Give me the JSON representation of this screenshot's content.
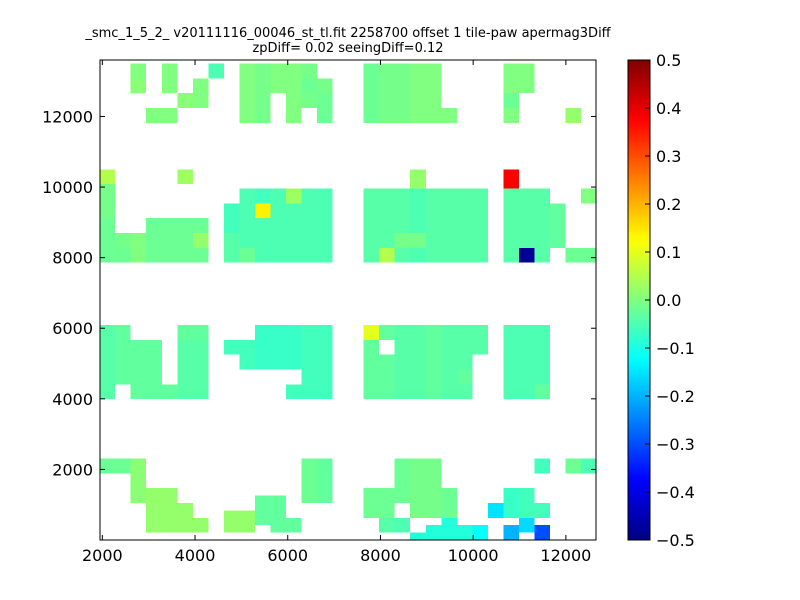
{
  "chart_data": {
    "type": "heatmap",
    "title_line1": "_smc_1_5_2_ v20111116_00046_st_tl.fit 2258700 offset 1 tile-paw apermag3Diff",
    "title_line2": "zpDiff= 0.02 seeingDiff=0.12",
    "xlabel": "",
    "ylabel": "",
    "xlim": [
      1950,
      12650
    ],
    "ylim": [
      0,
      13600
    ],
    "xticks": [
      2000,
      4000,
      6000,
      8000,
      10000,
      12000
    ],
    "yticks": [
      2000,
      4000,
      6000,
      8000,
      10000,
      12000
    ],
    "colorbar": {
      "colormap": "jet",
      "vmin": -0.5,
      "vmax": 0.5,
      "ticks": [
        -0.5,
        -0.4,
        -0.3,
        -0.2,
        -0.1,
        0.0,
        0.1,
        0.2,
        0.3,
        0.4,
        0.5
      ]
    },
    "cell_size": [
      335,
      420
    ],
    "cell_columns": [
      {
        "x": 2110,
        "blocks": [
          [
            7860,
            9120,
            -0.02
          ],
          [
            3990,
            6090,
            -0.04
          ],
          [
            1890,
            2310,
            -0.02
          ]
        ],
        "values": [
          [
            10080,
            10500,
            0.05
          ],
          [
            9120,
            10080,
            -0.01
          ]
        ]
      },
      {
        "x": 2445,
        "blocks": [
          [
            7860,
            8700,
            -0.02
          ],
          [
            4410,
            6090,
            -0.03
          ],
          [
            1890,
            2310,
            -0.02
          ]
        ],
        "values": [
          [
            8280,
            8700,
            -0.01
          ]
        ]
      },
      {
        "x": 2780,
        "blocks": [
          [
            12660,
            13500,
            0.01
          ],
          [
            7860,
            8700,
            0.0
          ],
          [
            3990,
            5670,
            -0.03
          ],
          [
            1050,
            2310,
            0.01
          ]
        ],
        "values": [
          [
            13080,
            13500,
            0.0
          ]
        ]
      },
      {
        "x": 3115,
        "blocks": [
          [
            11820,
            12240,
            0.0
          ],
          [
            7860,
            9120,
            -0.02
          ],
          [
            3990,
            5670,
            -0.03
          ],
          [
            210,
            1470,
            0.02
          ]
        ],
        "values": []
      },
      {
        "x": 3450,
        "blocks": [
          [
            11820,
            12240,
            0.0
          ],
          [
            12660,
            13500,
            0.0
          ],
          [
            7860,
            9120,
            -0.02
          ],
          [
            3990,
            4410,
            -0.03
          ],
          [
            210,
            1470,
            0.02
          ]
        ],
        "values": [
          [
            13080,
            13500,
            0.0
          ]
        ]
      },
      {
        "x": 3785,
        "blocks": [
          [
            12240,
            12660,
            0.01
          ],
          [
            7860,
            9120,
            -0.02
          ],
          [
            3990,
            6090,
            -0.04
          ],
          [
            210,
            1050,
            0.02
          ]
        ],
        "values": [
          [
            10080,
            10500,
            0.03
          ],
          [
            5670,
            6090,
            -0.03
          ]
        ]
      },
      {
        "x": 4120,
        "blocks": [
          [
            12240,
            13080,
            0.0
          ],
          [
            7860,
            9120,
            -0.02
          ],
          [
            3990,
            6090,
            -0.04
          ],
          [
            210,
            630,
            0.02
          ]
        ],
        "values": [
          [
            8280,
            8700,
            0.02
          ],
          [
            5670,
            6090,
            -0.03
          ]
        ]
      },
      {
        "x": 4455,
        "blocks": [
          [
            13080,
            13500,
            -0.05
          ]
        ],
        "values": []
      },
      {
        "x": 4790,
        "blocks": [
          [
            8700,
            9540,
            -0.06
          ],
          [
            7860,
            8700,
            -0.04
          ],
          [
            5250,
            5670,
            -0.06
          ],
          [
            210,
            840,
            0.02
          ]
        ],
        "values": [
          [
            8280,
            8700,
            -0.04
          ]
        ]
      },
      {
        "x": 5125,
        "blocks": [
          [
            11820,
            13500,
            0.0
          ],
          [
            7860,
            9960,
            -0.05
          ],
          [
            4830,
            5670,
            -0.06
          ],
          [
            210,
            840,
            0.02
          ]
        ],
        "values": [
          [
            7860,
            8280,
            -0.02
          ]
        ]
      },
      {
        "x": 5460,
        "blocks": [
          [
            11820,
            13500,
            -0.01
          ],
          [
            7860,
            9960,
            -0.05
          ],
          [
            4830,
            6090,
            -0.07
          ],
          [
            420,
            1260,
            -0.03
          ]
        ],
        "values": [
          [
            9120,
            9540,
            0.14
          ],
          [
            9540,
            9960,
            -0.06
          ]
        ]
      },
      {
        "x": 5795,
        "blocks": [
          [
            12660,
            13500,
            0.0
          ],
          [
            7860,
            9540,
            -0.05
          ],
          [
            4830,
            6090,
            -0.07
          ],
          [
            210,
            1260,
            -0.03
          ]
        ],
        "values": [
          [
            9540,
            9960,
            -0.05
          ]
        ]
      },
      {
        "x": 6130,
        "blocks": [
          [
            11820,
            13500,
            0.0
          ],
          [
            7860,
            9960,
            -0.05
          ],
          [
            4830,
            5250,
            -0.07
          ],
          [
            3990,
            4410,
            -0.06
          ],
          [
            210,
            630,
            -0.03
          ]
        ],
        "values": [
          [
            5250,
            6090,
            -0.07
          ],
          [
            9540,
            9960,
            0.03
          ]
        ]
      },
      {
        "x": 6465,
        "blocks": [
          [
            12240,
            13500,
            -0.01
          ],
          [
            7860,
            9960,
            -0.05
          ],
          [
            3990,
            6090,
            -0.06
          ],
          [
            1050,
            2310,
            -0.02
          ]
        ],
        "values": [
          [
            12660,
            13080,
            -0.02
          ]
        ]
      },
      {
        "x": 6800,
        "blocks": [
          [
            11820,
            13080,
            -0.02
          ],
          [
            7860,
            9960,
            -0.05
          ],
          [
            3990,
            6090,
            -0.06
          ],
          [
            1050,
            2310,
            -0.03
          ]
        ],
        "values": [
          [
            12660,
            13080,
            -0.01
          ]
        ]
      },
      {
        "x": 7135,
        "blocks": [],
        "values": []
      },
      {
        "x": 7470,
        "blocks": [],
        "values": []
      },
      {
        "x": 7805,
        "blocks": [
          [
            11820,
            13500,
            -0.02
          ],
          [
            7860,
            9960,
            -0.04
          ],
          [
            3990,
            6090,
            -0.03
          ],
          [
            630,
            1470,
            -0.02
          ]
        ],
        "values": [
          [
            5670,
            6090,
            0.1
          ]
        ]
      },
      {
        "x": 8140,
        "blocks": [
          [
            11820,
            13500,
            -0.01
          ],
          [
            7860,
            9960,
            -0.04
          ],
          [
            3990,
            5250,
            -0.03
          ],
          [
            630,
            1470,
            -0.02
          ],
          [
            210,
            630,
            -0.04
          ]
        ],
        "values": [
          [
            7860,
            8280,
            0.05
          ],
          [
            5670,
            6090,
            -0.03
          ]
        ]
      },
      {
        "x": 8475,
        "blocks": [
          [
            11820,
            13500,
            -0.01
          ],
          [
            7860,
            9960,
            -0.04
          ],
          [
            3990,
            6090,
            -0.04
          ],
          [
            1050,
            2310,
            -0.02
          ],
          [
            210,
            630,
            -0.05
          ]
        ],
        "values": [
          [
            8280,
            8700,
            -0.01
          ]
        ]
      },
      {
        "x": 8810,
        "blocks": [
          [
            11820,
            13500,
            0.0
          ],
          [
            7860,
            9960,
            -0.05
          ],
          [
            3990,
            6090,
            -0.04
          ],
          [
            630,
            2310,
            -0.01
          ],
          [
            0,
            210,
            -0.09
          ]
        ],
        "values": [
          [
            9960,
            10500,
            0.02
          ],
          [
            8280,
            8700,
            -0.01
          ]
        ]
      },
      {
        "x": 9145,
        "blocks": [
          [
            11820,
            13500,
            0.0
          ],
          [
            7860,
            9960,
            -0.04
          ],
          [
            3990,
            6090,
            -0.03
          ],
          [
            630,
            2310,
            -0.01
          ],
          [
            0,
            420,
            -0.09
          ]
        ],
        "values": []
      },
      {
        "x": 9480,
        "blocks": [
          [
            11820,
            12240,
            0.0
          ],
          [
            7860,
            9960,
            -0.04
          ],
          [
            3990,
            6090,
            -0.04
          ],
          [
            630,
            1470,
            -0.02
          ],
          [
            0,
            630,
            -0.09
          ]
        ],
        "values": []
      },
      {
        "x": 9815,
        "blocks": [
          [
            7860,
            9960,
            -0.04
          ],
          [
            4830,
            6090,
            -0.04
          ],
          [
            3990,
            4410,
            -0.04
          ],
          [
            0,
            420,
            -0.09
          ]
        ],
        "values": [
          [
            4410,
            4830,
            -0.03
          ]
        ]
      },
      {
        "x": 10150,
        "blocks": [
          [
            7860,
            9960,
            -0.04
          ],
          [
            5250,
            6090,
            -0.04
          ],
          [
            0,
            420,
            -0.12
          ]
        ],
        "values": []
      },
      {
        "x": 10485,
        "blocks": [
          [
            630,
            1050,
            -0.15
          ]
        ],
        "values": []
      },
      {
        "x": 10820,
        "blocks": [
          [
            11820,
            13500,
            0.0
          ],
          [
            7860,
            9960,
            -0.04
          ],
          [
            3990,
            6090,
            -0.05
          ],
          [
            630,
            1470,
            -0.07
          ],
          [
            0,
            420,
            -0.2
          ]
        ],
        "values": [
          [
            9960,
            10500,
            0.38
          ],
          [
            12240,
            12660,
            -0.02
          ]
        ]
      },
      {
        "x": 11155,
        "blocks": [
          [
            12660,
            13500,
            0.0
          ],
          [
            8280,
            9960,
            -0.04
          ],
          [
            3990,
            6090,
            -0.05
          ],
          [
            630,
            1470,
            -0.06
          ],
          [
            210,
            630,
            -0.16
          ]
        ],
        "values": [
          [
            7860,
            8280,
            -0.48
          ]
        ]
      },
      {
        "x": 11490,
        "blocks": [
          [
            8280,
            9960,
            -0.04
          ],
          [
            4410,
            6090,
            -0.05
          ],
          [
            1890,
            2310,
            -0.06
          ],
          [
            630,
            1050,
            -0.06
          ],
          [
            0,
            420,
            -0.3
          ]
        ],
        "values": [
          [
            7860,
            8280,
            -0.04
          ],
          [
            3990,
            4410,
            -0.03
          ]
        ]
      },
      {
        "x": 11825,
        "blocks": [
          [
            8280,
            9540,
            -0.03
          ]
        ],
        "values": []
      },
      {
        "x": 12160,
        "blocks": [
          [
            11820,
            12240,
            0.02
          ],
          [
            7860,
            8280,
            -0.02
          ],
          [
            1890,
            2310,
            -0.02
          ]
        ],
        "values": []
      },
      {
        "x": 12495,
        "blocks": [
          [
            9540,
            9960,
            0.0
          ],
          [
            7860,
            8280,
            -0.02
          ],
          [
            1890,
            2310,
            -0.05
          ]
        ],
        "values": []
      }
    ]
  }
}
